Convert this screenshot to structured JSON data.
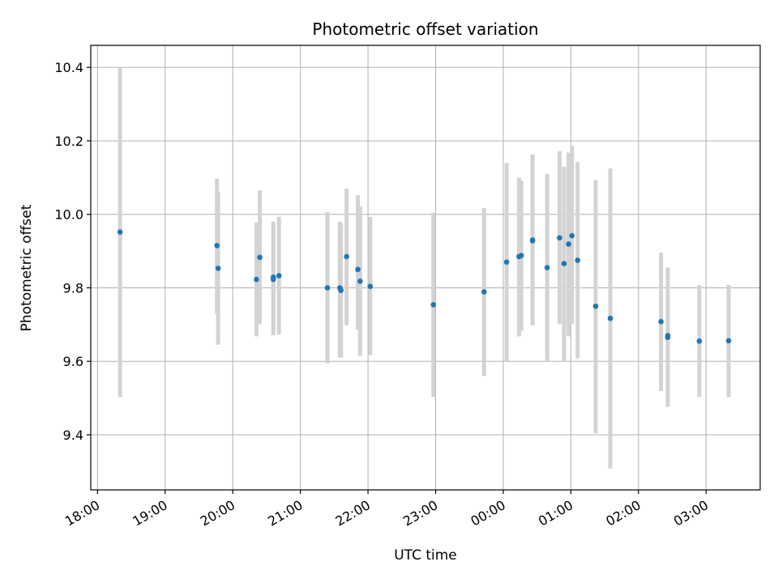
{
  "chart_data": {
    "type": "scatter",
    "title": "Photometric offset variation",
    "xlabel": "UTC time",
    "ylabel": "Photometric offset",
    "x_range_hours": [
      17.9,
      27.8
    ],
    "ylim": [
      9.25,
      10.46
    ],
    "grid": true,
    "xticks": [
      {
        "label": "18:00",
        "value": 18
      },
      {
        "label": "19:00",
        "value": 19
      },
      {
        "label": "20:00",
        "value": 20
      },
      {
        "label": "21:00",
        "value": 21
      },
      {
        "label": "22:00",
        "value": 22
      },
      {
        "label": "23:00",
        "value": 23
      },
      {
        "label": "00:00",
        "value": 24
      },
      {
        "label": "01:00",
        "value": 25
      },
      {
        "label": "02:00",
        "value": 26
      },
      {
        "label": "03:00",
        "value": 27
      }
    ],
    "yticks": [
      {
        "label": "9.4",
        "value": 9.4
      },
      {
        "label": "9.6",
        "value": 9.6
      },
      {
        "label": "9.8",
        "value": 9.8
      },
      {
        "label": "10.0",
        "value": 10.0
      },
      {
        "label": "10.2",
        "value": 10.2
      },
      {
        "label": "10.4",
        "value": 10.4
      }
    ],
    "point_color": "#1f77b4",
    "errorbar_color": "#d3d3d3",
    "points": [
      {
        "t": "18:20",
        "y": 9.952,
        "lo": 9.503,
        "hi": 10.401
      },
      {
        "t": "19:46",
        "y": 9.915,
        "lo": 9.73,
        "hi": 10.097
      },
      {
        "t": "19:47",
        "y": 9.853,
        "lo": 9.645,
        "hi": 10.062
      },
      {
        "t": "20:21",
        "y": 9.823,
        "lo": 9.668,
        "hi": 9.978
      },
      {
        "t": "20:24",
        "y": 9.883,
        "lo": 9.701,
        "hi": 10.065
      },
      {
        "t": "20:36",
        "y": 9.829,
        "lo": 9.671,
        "hi": 9.98
      },
      {
        "t": "20:36",
        "y": 9.823,
        "lo": 9.671,
        "hi": 9.975
      },
      {
        "t": "20:41",
        "y": 9.833,
        "lo": 9.673,
        "hi": 9.993
      },
      {
        "t": "21:24",
        "y": 9.8,
        "lo": 9.594,
        "hi": 10.006
      },
      {
        "t": "21:35",
        "y": 9.8,
        "lo": 9.61,
        "hi": 9.98
      },
      {
        "t": "21:36",
        "y": 9.793,
        "lo": 9.61,
        "hi": 9.975
      },
      {
        "t": "21:41",
        "y": 9.885,
        "lo": 9.698,
        "hi": 10.07
      },
      {
        "t": "21:51",
        "y": 9.85,
        "lo": 9.686,
        "hi": 10.052
      },
      {
        "t": "21:53",
        "y": 9.818,
        "lo": 9.615,
        "hi": 10.021
      },
      {
        "t": "22:02",
        "y": 9.804,
        "lo": 9.617,
        "hi": 9.993
      },
      {
        "t": "22:58",
        "y": 9.754,
        "lo": 9.503,
        "hi": 10.004
      },
      {
        "t": "23:43",
        "y": 9.789,
        "lo": 9.56,
        "hi": 10.017
      },
      {
        "t": "00:03",
        "y": 9.87,
        "lo": 9.6,
        "hi": 10.14
      },
      {
        "t": "00:14",
        "y": 9.885,
        "lo": 9.668,
        "hi": 10.1
      },
      {
        "t": "00:16",
        "y": 9.888,
        "lo": 9.683,
        "hi": 10.092
      },
      {
        "t": "00:26",
        "y": 9.928,
        "lo": 9.698,
        "hi": 10.163
      },
      {
        "t": "00:26",
        "y": 9.93,
        "lo": 9.698,
        "hi": 10.163
      },
      {
        "t": "00:39",
        "y": 9.855,
        "lo": 9.6,
        "hi": 10.11
      },
      {
        "t": "00:50",
        "y": 9.936,
        "lo": 9.701,
        "hi": 10.172
      },
      {
        "t": "00:54",
        "y": 9.866,
        "lo": 9.6,
        "hi": 10.13
      },
      {
        "t": "00:58",
        "y": 9.919,
        "lo": 9.668,
        "hi": 10.168
      },
      {
        "t": "01:01",
        "y": 9.942,
        "lo": 9.701,
        "hi": 10.186
      },
      {
        "t": "01:06",
        "y": 9.875,
        "lo": 9.608,
        "hi": 10.142
      },
      {
        "t": "01:22",
        "y": 9.75,
        "lo": 9.404,
        "hi": 10.093
      },
      {
        "t": "01:35",
        "y": 9.717,
        "lo": 9.308,
        "hi": 10.125
      },
      {
        "t": "02:20",
        "y": 9.708,
        "lo": 9.519,
        "hi": 9.896
      },
      {
        "t": "02:26",
        "y": 9.67,
        "lo": 9.486,
        "hi": 9.855
      },
      {
        "t": "02:26",
        "y": 9.665,
        "lo": 9.476,
        "hi": 9.853
      },
      {
        "t": "02:54",
        "y": 9.655,
        "lo": 9.503,
        "hi": 9.807
      },
      {
        "t": "03:20",
        "y": 9.656,
        "lo": 9.503,
        "hi": 9.808
      }
    ]
  }
}
